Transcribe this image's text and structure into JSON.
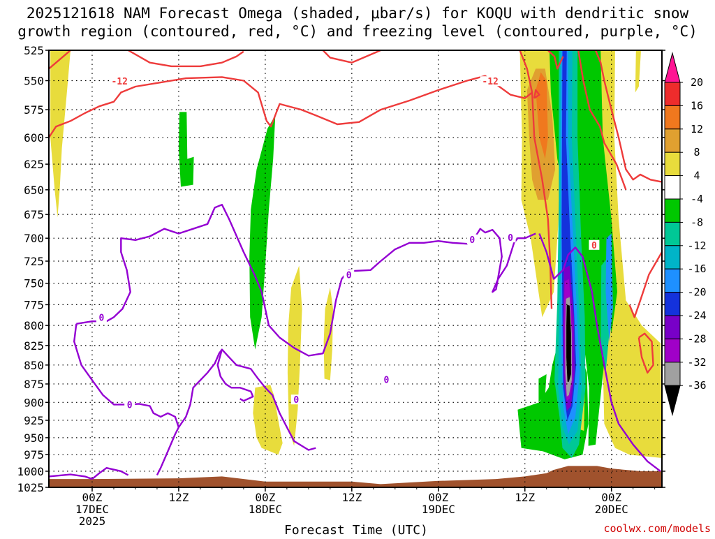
{
  "chart_data": {
    "type": "time-height section (shaded + contoured)",
    "title_line1": "2025121618 NAM Forecast Omega (shaded, μbar/s) for KOQU with dendritic snow",
    "title_line2": "growth region (contoured, red, °C) and freezing level (contoured, purple, °C)",
    "xlabel": "Forecast Time (UTC)",
    "x_unit": "hours since 00Z 17DEC2025",
    "xlim": [
      -6,
      79
    ],
    "x_ticks": [
      {
        "t": 0,
        "line1": "00Z",
        "line2": "17DEC",
        "line3": "2025"
      },
      {
        "t": 12,
        "line1": "12Z",
        "line2": "",
        "line3": ""
      },
      {
        "t": 24,
        "line1": "00Z",
        "line2": "18DEC",
        "line3": ""
      },
      {
        "t": 36,
        "line1": "12Z",
        "line2": "",
        "line3": ""
      },
      {
        "t": 48,
        "line1": "00Z",
        "line2": "19DEC",
        "line3": ""
      },
      {
        "t": 60,
        "line1": "12Z",
        "line2": "",
        "line3": ""
      },
      {
        "t": 72,
        "line1": "00Z",
        "line2": "20DEC",
        "line3": ""
      }
    ],
    "y_unit": "hPa",
    "ylim": [
      525,
      1025
    ],
    "y_ticks": [
      525,
      550,
      575,
      600,
      625,
      650,
      675,
      700,
      725,
      750,
      775,
      800,
      825,
      850,
      875,
      900,
      925,
      950,
      975,
      1000,
      1025
    ],
    "colorbar": {
      "labels": [
        "20",
        "16",
        "12",
        "8",
        "4",
        "-4",
        "-8",
        "-12",
        "-16",
        "-20",
        "-24",
        "-28",
        "-32",
        "-36"
      ],
      "colors": [
        "#ff1493",
        "#ee2c2c",
        "#f0781e",
        "#e0a030",
        "#e8dc3c",
        "#ffffff",
        "#00c800",
        "#00c896",
        "#00b4c8",
        "#1e90ff",
        "#1432dc",
        "#7800c8",
        "#a000c8",
        "#a0a0a0",
        "#000000"
      ]
    },
    "contour_labels": [
      {
        "text": "-12",
        "t": 3.8,
        "p": 551,
        "color": "#ee3b3b"
      },
      {
        "text": "-12",
        "t": 55.2,
        "p": 551,
        "color": "#ee3b3b"
      },
      {
        "text": "0",
        "t": 58.0,
        "p": 700,
        "color": "#9400d3"
      },
      {
        "text": "0",
        "t": 69.6,
        "p": 708,
        "color": "#ee3b3b"
      },
      {
        "text": "0",
        "t": 52.7,
        "p": 702,
        "color": "#9400d3"
      },
      {
        "text": "0",
        "t": 35.6,
        "p": 741,
        "color": "#9400d3"
      },
      {
        "text": "0",
        "t": 1.3,
        "p": 791,
        "color": "#9400d3"
      },
      {
        "text": "0",
        "t": 5.2,
        "p": 904,
        "color": "#9400d3"
      },
      {
        "text": "0",
        "t": 28.3,
        "p": 897,
        "color": "#9400d3"
      },
      {
        "text": "0",
        "t": 40.8,
        "p": 870,
        "color": "#9400d3"
      }
    ],
    "credit": "coolwx.com/models"
  }
}
